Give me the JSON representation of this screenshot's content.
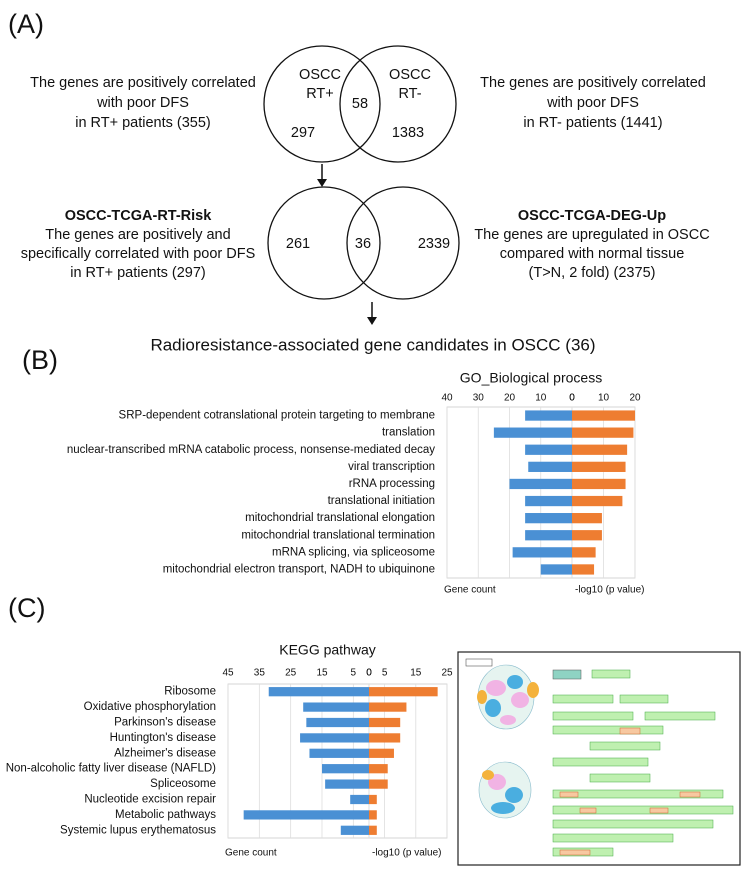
{
  "panel_labels": [
    "(A)",
    "(B)",
    "(C)"
  ],
  "venn": [
    {
      "left": {
        "lines": [
          "OSCC",
          "RT+"
        ],
        "only": 297
      },
      "right": {
        "lines": [
          "OSCC",
          "RT-"
        ],
        "only": 1383
      },
      "overlap": 58,
      "left_note": {
        "lines": [
          "The genes are positively correlated",
          "with poor DFS",
          "in RT+ patients (355)"
        ]
      },
      "right_note": {
        "lines": [
          "The genes are positively correlated",
          "with poor DFS",
          "in RT- patients (1441)"
        ]
      }
    },
    {
      "left": {
        "only": 261
      },
      "right": {
        "only": 2339
      },
      "overlap": 36,
      "left_note": {
        "title": "OSCC-TCGA-RT-Risk",
        "lines": [
          "The genes are positively and",
          "specifically correlated with poor DFS",
          "in RT+ patients (297)"
        ]
      },
      "right_note": {
        "title": "OSCC-TCGA-DEG-Up",
        "lines": [
          "The genes are upregulated in OSCC",
          "compared with normal tissue",
          "(T>N, 2 fold) (2375)"
        ]
      }
    }
  ],
  "result": "Radioresistance-associated gene candidates in OSCC (36)",
  "chart_data": [
    {
      "type": "bar",
      "orientation": "horizontal",
      "title": "GO_Biological process",
      "grid": true,
      "categories": [
        "SRP-dependent cotranslational protein targeting to membrane",
        "translation",
        "nuclear-transcribed mRNA catabolic process, nonsense-mediated decay",
        "viral transcription",
        "rRNA processing",
        "translational initiation",
        "mitochondrial translational elongation",
        "mitochondrial translational termination",
        "mRNA splicing, via spliceosome",
        "mitochondrial electron transport, NADH to ubiquinone"
      ],
      "xlim": [
        40,
        0
      ],
      "xticks": [
        40,
        30,
        20,
        10,
        0
      ],
      "x2lim": [
        0,
        20
      ],
      "x2ticks": [
        0,
        10,
        20
      ],
      "series": [
        {
          "name": "Gene count",
          "color": "#4a90d4",
          "axis": "x",
          "values": [
            15,
            25,
            15,
            14,
            20,
            15,
            15,
            15,
            19,
            10
          ]
        },
        {
          "name": "-log10 (p value)",
          "color": "#ee7d31",
          "axis": "x2",
          "values": [
            20,
            19.5,
            17.5,
            17,
            17,
            16,
            9.5,
            9.5,
            7.5,
            7
          ]
        }
      ]
    },
    {
      "type": "bar",
      "orientation": "horizontal",
      "title": "KEGG pathway",
      "grid": true,
      "categories": [
        "Ribosome",
        "Oxidative phosphorylation",
        "Parkinson's disease",
        "Huntington's disease",
        "Alzheimer's disease",
        "Non-alcoholic fatty liver disease (NAFLD)",
        "Spliceosome",
        "Nucleotide excision repair",
        "Metabolic pathways",
        "Systemic lupus erythematosus"
      ],
      "xlim": [
        45,
        0
      ],
      "xticks": [
        45,
        35,
        25,
        15,
        5,
        0
      ],
      "x2lim": [
        0,
        25
      ],
      "x2ticks": [
        0,
        5,
        15,
        25
      ],
      "series": [
        {
          "name": "Gene count",
          "color": "#4a90d4",
          "axis": "x",
          "values": [
            32,
            21,
            20,
            22,
            19,
            15,
            14,
            6,
            40,
            9
          ]
        },
        {
          "name": "-log10 (p value)",
          "color": "#ee7d31",
          "axis": "x2",
          "values": [
            22,
            12,
            10,
            10,
            8,
            6,
            6,
            2.5,
            2.5,
            2.5
          ]
        }
      ]
    }
  ]
}
